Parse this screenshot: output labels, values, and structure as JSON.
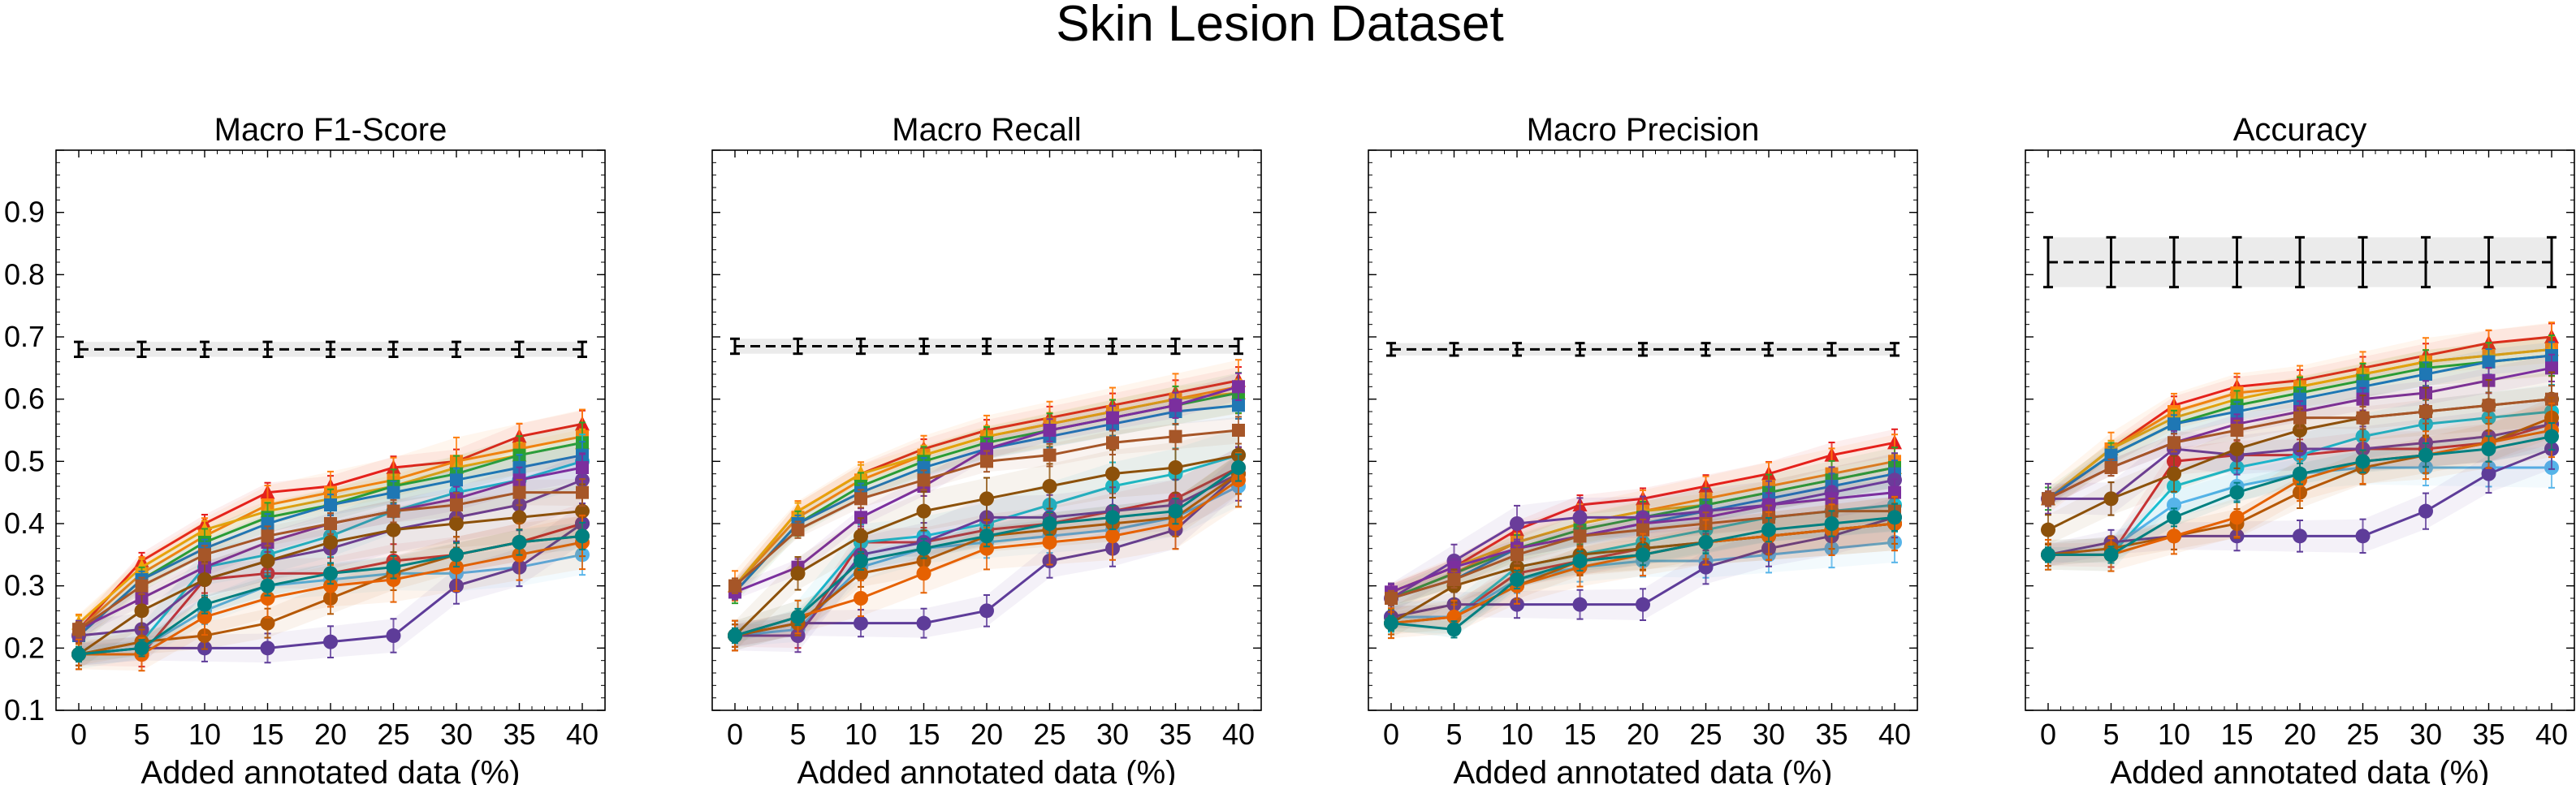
{
  "figure": {
    "title": "Skin Lesion Dataset"
  },
  "chart_data": [
    {
      "type": "line",
      "title": "Macro F1-Score",
      "xlabel": "Added annotated data (%)",
      "ylabel": "",
      "x": [
        0,
        5,
        10,
        15,
        20,
        25,
        30,
        35,
        40
      ],
      "ylim": [
        0.1,
        1.0
      ],
      "yticks": [
        "0.1",
        "0.2",
        "0.3",
        "0.4",
        "0.5",
        "0.6",
        "0.7",
        "0.8",
        "0.9"
      ],
      "baseline": {
        "values": [
          0.68,
          0.68,
          0.68,
          0.68,
          0.68,
          0.68,
          0.68,
          0.68,
          0.68
        ],
        "err": 0.012
      },
      "series": [
        {
          "color": "#e41a1c",
          "marker": "^",
          "values": [
            0.23,
            0.34,
            0.4,
            0.45,
            0.46,
            0.49,
            0.5,
            0.54,
            0.56
          ]
        },
        {
          "color": "#d62728",
          "marker": "o",
          "values": [
            0.19,
            0.19,
            0.31,
            0.32,
            0.32,
            0.34,
            0.35,
            0.37,
            0.4
          ]
        },
        {
          "color": "#ff7f0e",
          "marker": "s",
          "values": [
            0.23,
            0.32,
            0.38,
            0.43,
            0.45,
            0.47,
            0.5,
            0.52,
            0.54
          ]
        },
        {
          "color": "#f0a30a",
          "marker": "^",
          "values": [
            0.24,
            0.33,
            0.39,
            0.42,
            0.44,
            0.46,
            0.49,
            0.51,
            0.53
          ]
        },
        {
          "color": "#2ca02c",
          "marker": "s",
          "values": [
            0.22,
            0.31,
            0.37,
            0.41,
            0.43,
            0.46,
            0.48,
            0.51,
            0.53
          ]
        },
        {
          "color": "#17becf",
          "marker": "o",
          "values": [
            0.19,
            0.21,
            0.33,
            0.35,
            0.38,
            0.42,
            0.45,
            0.47,
            0.5
          ]
        },
        {
          "color": "#1f77b4",
          "marker": "s",
          "values": [
            0.22,
            0.31,
            0.36,
            0.4,
            0.43,
            0.45,
            0.47,
            0.49,
            0.51
          ]
        },
        {
          "color": "#56b4e9",
          "marker": "o",
          "values": [
            0.19,
            0.2,
            0.26,
            0.3,
            0.31,
            0.32,
            0.32,
            0.33,
            0.35
          ]
        },
        {
          "color": "#6a3d9a",
          "marker": "o",
          "values": [
            0.22,
            0.23,
            0.31,
            0.34,
            0.36,
            0.39,
            0.41,
            0.43,
            0.47
          ]
        },
        {
          "color": "#7b2f9e",
          "marker": "s",
          "values": [
            0.23,
            0.28,
            0.33,
            0.37,
            0.4,
            0.42,
            0.44,
            0.47,
            0.49
          ]
        },
        {
          "color": "#5e3c99",
          "marker": "o",
          "values": [
            0.19,
            0.2,
            0.2,
            0.2,
            0.21,
            0.22,
            0.3,
            0.33,
            0.4
          ]
        },
        {
          "color": "#8c510a",
          "marker": "o",
          "values": [
            0.19,
            0.26,
            0.31,
            0.34,
            0.37,
            0.39,
            0.4,
            0.41,
            0.42
          ]
        },
        {
          "color": "#a65628",
          "marker": "s",
          "values": [
            0.23,
            0.3,
            0.35,
            0.38,
            0.4,
            0.42,
            0.43,
            0.45,
            0.45
          ]
        },
        {
          "color": "#b35806",
          "marker": "o",
          "values": [
            0.19,
            0.21,
            0.22,
            0.24,
            0.28,
            0.32,
            0.35,
            0.37,
            0.38
          ]
        },
        {
          "color": "#e66101",
          "marker": "o",
          "values": [
            0.19,
            0.19,
            0.25,
            0.28,
            0.3,
            0.31,
            0.33,
            0.35,
            0.37
          ]
        },
        {
          "color": "#008080",
          "marker": "o",
          "values": [
            0.19,
            0.2,
            0.27,
            0.3,
            0.32,
            0.33,
            0.35,
            0.37,
            0.38
          ]
        }
      ]
    },
    {
      "type": "line",
      "title": "Macro Recall",
      "xlabel": "Added annotated data (%)",
      "ylabel": "",
      "x": [
        0,
        5,
        10,
        15,
        20,
        25,
        30,
        35,
        40
      ],
      "ylim": [
        0.1,
        1.0
      ],
      "yticks": [],
      "baseline": {
        "values": [
          0.685,
          0.685,
          0.685,
          0.685,
          0.685,
          0.685,
          0.685,
          0.685,
          0.685
        ],
        "err": 0.012
      },
      "series": [
        {
          "color": "#e41a1c",
          "marker": "^",
          "values": [
            0.3,
            0.42,
            0.48,
            0.52,
            0.55,
            0.57,
            0.59,
            0.61,
            0.63
          ]
        },
        {
          "color": "#d62728",
          "marker": "o",
          "values": [
            0.22,
            0.22,
            0.37,
            0.37,
            0.39,
            0.4,
            0.42,
            0.44,
            0.49
          ]
        },
        {
          "color": "#ff7f0e",
          "marker": "s",
          "values": [
            0.3,
            0.41,
            0.47,
            0.51,
            0.54,
            0.56,
            0.58,
            0.6,
            0.62
          ]
        },
        {
          "color": "#f0a30a",
          "marker": "^",
          "values": [
            0.3,
            0.42,
            0.48,
            0.51,
            0.54,
            0.56,
            0.58,
            0.6,
            0.61
          ]
        },
        {
          "color": "#2ca02c",
          "marker": "s",
          "values": [
            0.29,
            0.4,
            0.46,
            0.5,
            0.53,
            0.55,
            0.57,
            0.59,
            0.61
          ]
        },
        {
          "color": "#17becf",
          "marker": "o",
          "values": [
            0.22,
            0.25,
            0.37,
            0.38,
            0.4,
            0.43,
            0.46,
            0.48,
            0.51
          ]
        },
        {
          "color": "#1f77b4",
          "marker": "s",
          "values": [
            0.29,
            0.4,
            0.45,
            0.49,
            0.52,
            0.54,
            0.56,
            0.58,
            0.59
          ]
        },
        {
          "color": "#56b4e9",
          "marker": "o",
          "values": [
            0.22,
            0.23,
            0.33,
            0.36,
            0.37,
            0.38,
            0.39,
            0.41,
            0.46
          ]
        },
        {
          "color": "#6a3d9a",
          "marker": "o",
          "values": [
            0.22,
            0.22,
            0.35,
            0.37,
            0.41,
            0.41,
            0.42,
            0.43,
            0.48
          ]
        },
        {
          "color": "#7b2f9e",
          "marker": "s",
          "values": [
            0.29,
            0.33,
            0.41,
            0.46,
            0.52,
            0.55,
            0.57,
            0.59,
            0.62
          ]
        },
        {
          "color": "#5e3c99",
          "marker": "o",
          "values": [
            0.22,
            0.24,
            0.24,
            0.24,
            0.26,
            0.34,
            0.36,
            0.39,
            0.48
          ]
        },
        {
          "color": "#8c510a",
          "marker": "o",
          "values": [
            0.22,
            0.32,
            0.38,
            0.42,
            0.44,
            0.46,
            0.48,
            0.49,
            0.51
          ]
        },
        {
          "color": "#a65628",
          "marker": "s",
          "values": [
            0.3,
            0.39,
            0.44,
            0.47,
            0.5,
            0.51,
            0.53,
            0.54,
            0.55
          ]
        },
        {
          "color": "#b35806",
          "marker": "o",
          "values": [
            0.22,
            0.24,
            0.32,
            0.34,
            0.38,
            0.39,
            0.4,
            0.41,
            0.48
          ]
        },
        {
          "color": "#e66101",
          "marker": "o",
          "values": [
            0.22,
            0.25,
            0.28,
            0.32,
            0.36,
            0.37,
            0.38,
            0.4,
            0.47
          ]
        },
        {
          "color": "#008080",
          "marker": "o",
          "values": [
            0.22,
            0.25,
            0.34,
            0.36,
            0.38,
            0.4,
            0.41,
            0.42,
            0.49
          ]
        }
      ]
    },
    {
      "type": "line",
      "title": "Macro Precision",
      "xlabel": "Added annotated data (%)",
      "ylabel": "",
      "x": [
        0,
        5,
        10,
        15,
        20,
        25,
        30,
        35,
        40
      ],
      "ylim": [
        0.1,
        1.0
      ],
      "yticks": [],
      "baseline": {
        "values": [
          0.68,
          0.68,
          0.68,
          0.68,
          0.68,
          0.68,
          0.68,
          0.68,
          0.68
        ],
        "err": 0.01
      },
      "series": [
        {
          "color": "#e41a1c",
          "marker": "^",
          "values": [
            0.29,
            0.33,
            0.39,
            0.43,
            0.44,
            0.46,
            0.48,
            0.51,
            0.53
          ]
        },
        {
          "color": "#d62728",
          "marker": "o",
          "values": [
            0.25,
            0.25,
            0.32,
            0.34,
            0.36,
            0.37,
            0.38,
            0.39,
            0.4
          ]
        },
        {
          "color": "#ff7f0e",
          "marker": "s",
          "values": [
            0.28,
            0.32,
            0.37,
            0.4,
            0.42,
            0.44,
            0.46,
            0.48,
            0.5
          ]
        },
        {
          "color": "#f0a30a",
          "marker": "^",
          "values": [
            0.29,
            0.33,
            0.37,
            0.4,
            0.42,
            0.43,
            0.45,
            0.47,
            0.49
          ]
        },
        {
          "color": "#2ca02c",
          "marker": "s",
          "values": [
            0.28,
            0.32,
            0.36,
            0.39,
            0.41,
            0.43,
            0.45,
            0.47,
            0.49
          ]
        },
        {
          "color": "#17becf",
          "marker": "o",
          "values": [
            0.25,
            0.25,
            0.33,
            0.35,
            0.37,
            0.39,
            0.41,
            0.42,
            0.43
          ]
        },
        {
          "color": "#1f77b4",
          "marker": "s",
          "values": [
            0.28,
            0.31,
            0.36,
            0.38,
            0.4,
            0.42,
            0.44,
            0.46,
            0.48
          ]
        },
        {
          "color": "#56b4e9",
          "marker": "o",
          "values": [
            0.25,
            0.25,
            0.31,
            0.33,
            0.34,
            0.34,
            0.35,
            0.36,
            0.37
          ]
        },
        {
          "color": "#6a3d9a",
          "marker": "o",
          "values": [
            0.28,
            0.34,
            0.4,
            0.41,
            0.41,
            0.42,
            0.43,
            0.45,
            0.47
          ]
        },
        {
          "color": "#7b2f9e",
          "marker": "s",
          "values": [
            0.29,
            0.33,
            0.36,
            0.38,
            0.4,
            0.41,
            0.43,
            0.44,
            0.45
          ]
        },
        {
          "color": "#5e3c99",
          "marker": "o",
          "values": [
            0.25,
            0.27,
            0.27,
            0.27,
            0.27,
            0.33,
            0.36,
            0.38,
            0.41
          ]
        },
        {
          "color": "#8c510a",
          "marker": "o",
          "values": [
            0.24,
            0.3,
            0.33,
            0.35,
            0.36,
            0.37,
            0.38,
            0.39,
            0.4
          ]
        },
        {
          "color": "#a65628",
          "marker": "s",
          "values": [
            0.28,
            0.31,
            0.35,
            0.38,
            0.39,
            0.4,
            0.41,
            0.42,
            0.42
          ]
        },
        {
          "color": "#b35806",
          "marker": "o",
          "values": [
            0.24,
            0.25,
            0.3,
            0.34,
            0.35,
            0.37,
            0.38,
            0.39,
            0.4
          ]
        },
        {
          "color": "#e66101",
          "marker": "o",
          "values": [
            0.24,
            0.25,
            0.3,
            0.33,
            0.35,
            0.37,
            0.38,
            0.39,
            0.4
          ]
        },
        {
          "color": "#008080",
          "marker": "o",
          "values": [
            0.24,
            0.23,
            0.31,
            0.34,
            0.35,
            0.37,
            0.39,
            0.4,
            0.41
          ]
        }
      ]
    },
    {
      "type": "line",
      "title": "Accuracy",
      "xlabel": "Added annotated data (%)",
      "ylabel": "",
      "x": [
        0,
        5,
        10,
        15,
        20,
        25,
        30,
        35,
        40
      ],
      "ylim": [
        0.1,
        1.0
      ],
      "yticks": [],
      "baseline": {
        "values": [
          0.82,
          0.82,
          0.82,
          0.82,
          0.82,
          0.82,
          0.82,
          0.82,
          0.82
        ],
        "err": 0.04
      },
      "series": [
        {
          "color": "#e41a1c",
          "marker": "^",
          "values": [
            0.44,
            0.52,
            0.59,
            0.62,
            0.63,
            0.65,
            0.67,
            0.69,
            0.7
          ]
        },
        {
          "color": "#d62728",
          "marker": "o",
          "values": [
            0.35,
            0.35,
            0.5,
            0.51,
            0.51,
            0.52,
            0.52,
            0.53,
            0.56
          ]
        },
        {
          "color": "#ff7f0e",
          "marker": "s",
          "values": [
            0.44,
            0.52,
            0.58,
            0.61,
            0.62,
            0.64,
            0.66,
            0.67,
            0.68
          ]
        },
        {
          "color": "#f0a30a",
          "marker": "^",
          "values": [
            0.44,
            0.52,
            0.57,
            0.6,
            0.62,
            0.64,
            0.66,
            0.67,
            0.68
          ]
        },
        {
          "color": "#2ca02c",
          "marker": "s",
          "values": [
            0.44,
            0.51,
            0.56,
            0.59,
            0.61,
            0.63,
            0.65,
            0.66,
            0.67
          ]
        },
        {
          "color": "#17becf",
          "marker": "o",
          "values": [
            0.35,
            0.35,
            0.46,
            0.49,
            0.51,
            0.54,
            0.56,
            0.57,
            0.58
          ]
        },
        {
          "color": "#1f77b4",
          "marker": "s",
          "values": [
            0.44,
            0.51,
            0.56,
            0.58,
            0.6,
            0.62,
            0.64,
            0.66,
            0.67
          ]
        },
        {
          "color": "#56b4e9",
          "marker": "o",
          "values": [
            0.35,
            0.36,
            0.43,
            0.46,
            0.48,
            0.49,
            0.49,
            0.49,
            0.49
          ]
        },
        {
          "color": "#6a3d9a",
          "marker": "o",
          "values": [
            0.44,
            0.44,
            0.52,
            0.51,
            0.52,
            0.52,
            0.53,
            0.54,
            0.56
          ]
        },
        {
          "color": "#7b2f9e",
          "marker": "s",
          "values": [
            0.44,
            0.49,
            0.53,
            0.56,
            0.58,
            0.6,
            0.61,
            0.63,
            0.65
          ]
        },
        {
          "color": "#5e3c99",
          "marker": "o",
          "values": [
            0.35,
            0.37,
            0.38,
            0.38,
            0.38,
            0.38,
            0.42,
            0.48,
            0.52
          ]
        },
        {
          "color": "#8c510a",
          "marker": "o",
          "values": [
            0.39,
            0.44,
            0.48,
            0.52,
            0.55,
            0.57,
            0.58,
            0.59,
            0.6
          ]
        },
        {
          "color": "#a65628",
          "marker": "s",
          "values": [
            0.44,
            0.49,
            0.53,
            0.55,
            0.57,
            0.57,
            0.58,
            0.59,
            0.6
          ]
        },
        {
          "color": "#b35806",
          "marker": "o",
          "values": [
            0.35,
            0.36,
            0.38,
            0.4,
            0.45,
            0.49,
            0.51,
            0.53,
            0.57
          ]
        },
        {
          "color": "#e66101",
          "marker": "o",
          "values": [
            0.35,
            0.35,
            0.38,
            0.41,
            0.47,
            0.5,
            0.51,
            0.53,
            0.55
          ]
        },
        {
          "color": "#008080",
          "marker": "o",
          "values": [
            0.35,
            0.35,
            0.41,
            0.45,
            0.48,
            0.5,
            0.51,
            0.52,
            0.54
          ]
        }
      ]
    }
  ]
}
